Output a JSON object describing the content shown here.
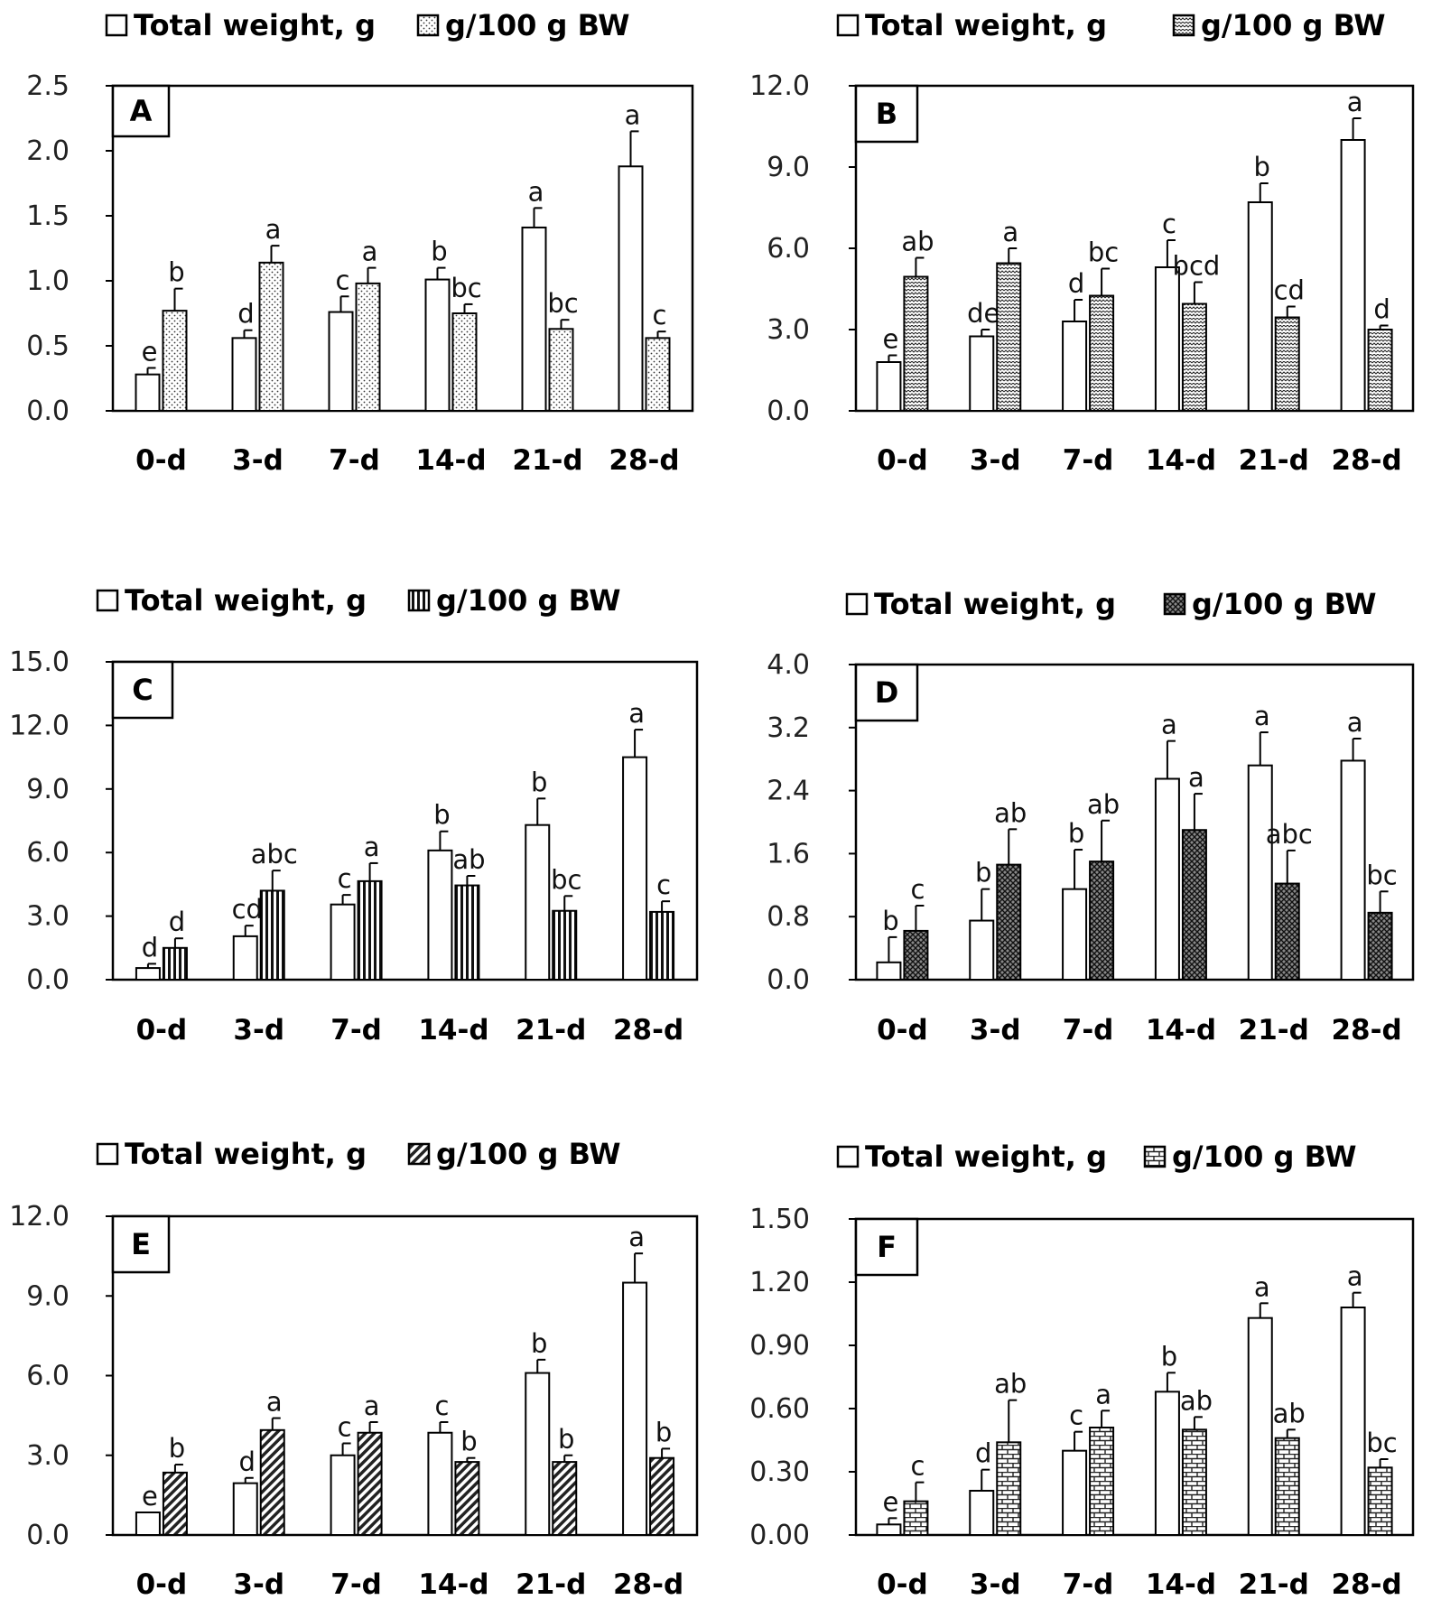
{
  "chart_data": [
    {
      "type": "bar",
      "panel_label": "A",
      "legend": [
        "Total weight, g",
        "g/100 g BW"
      ],
      "categories": [
        "0-d",
        "3-d",
        "7-d",
        "14-d",
        "21-d",
        "28-d"
      ],
      "ylim": [
        0,
        2.5
      ],
      "yticks": [
        "0.0",
        "0.5",
        "1.0",
        "1.5",
        "2.0",
        "2.5"
      ],
      "series": [
        {
          "name": "Total weight, g",
          "values": [
            0.28,
            0.56,
            0.76,
            1.01,
            1.41,
            1.88
          ],
          "errors": [
            0.05,
            0.06,
            0.12,
            0.09,
            0.15,
            0.27
          ],
          "letters": [
            "e",
            "d",
            "c",
            "b",
            "a",
            "a"
          ]
        },
        {
          "name": "g/100 g BW",
          "values": [
            0.77,
            1.14,
            0.98,
            0.75,
            0.63,
            0.56
          ],
          "errors": [
            0.17,
            0.13,
            0.12,
            0.07,
            0.07,
            0.05
          ],
          "letters": [
            "b",
            "a",
            "a",
            "bc",
            "bc",
            "c"
          ]
        }
      ]
    },
    {
      "type": "bar",
      "panel_label": "B",
      "legend": [
        "Total weight, g",
        "g/100 g BW"
      ],
      "categories": [
        "0-d",
        "3-d",
        "7-d",
        "14-d",
        "21-d",
        "28-d"
      ],
      "ylim": [
        0,
        12
      ],
      "yticks": [
        "0.0",
        "3.0",
        "6.0",
        "9.0",
        "12.0"
      ],
      "series": [
        {
          "name": "Total weight, g",
          "values": [
            1.8,
            2.75,
            3.3,
            5.3,
            7.7,
            10.0
          ],
          "errors": [
            0.25,
            0.25,
            0.8,
            1.0,
            0.7,
            0.8
          ],
          "letters": [
            "e",
            "de",
            "d",
            "c",
            "b",
            "a"
          ]
        },
        {
          "name": "g/100 g BW",
          "values": [
            4.95,
            5.45,
            4.25,
            3.95,
            3.45,
            3.0
          ],
          "errors": [
            0.7,
            0.55,
            1.0,
            0.8,
            0.4,
            0.15
          ],
          "letters": [
            "ab",
            "a",
            "bc",
            "bcd",
            "cd",
            "d"
          ]
        }
      ]
    },
    {
      "type": "bar",
      "panel_label": "C",
      "legend": [
        "Total weight, g",
        "g/100 g BW"
      ],
      "categories": [
        "0-d",
        "3-d",
        "7-d",
        "14-d",
        "21-d",
        "28-d"
      ],
      "ylim": [
        0,
        15
      ],
      "yticks": [
        "0.0",
        "3.0",
        "6.0",
        "9.0",
        "12.0",
        "15.0"
      ],
      "series": [
        {
          "name": "Total weight, g",
          "values": [
            0.55,
            2.05,
            3.55,
            6.1,
            7.3,
            10.5
          ],
          "errors": [
            0.2,
            0.5,
            0.45,
            0.9,
            1.25,
            1.3
          ],
          "letters": [
            "d",
            "cd",
            "c",
            "b",
            "b",
            "a"
          ]
        },
        {
          "name": "g/100 g BW",
          "values": [
            1.5,
            4.2,
            4.65,
            4.45,
            3.25,
            3.2
          ],
          "errors": [
            0.45,
            0.95,
            0.85,
            0.45,
            0.7,
            0.5
          ],
          "letters": [
            "d",
            "abc",
            "a",
            "ab",
            "bc",
            "c"
          ]
        }
      ]
    },
    {
      "type": "bar",
      "panel_label": "D",
      "legend": [
        "Total weight, g",
        "g/100 g BW"
      ],
      "categories": [
        "0-d",
        "3-d",
        "7-d",
        "14-d",
        "21-d",
        "28-d"
      ],
      "ylim": [
        0,
        4.0
      ],
      "yticks": [
        "0.0",
        "0.8",
        "1.6",
        "2.4",
        "3.2",
        "4.0"
      ],
      "series": [
        {
          "name": "Total weight, g",
          "values": [
            0.22,
            0.75,
            1.15,
            2.55,
            2.72,
            2.78
          ],
          "errors": [
            0.32,
            0.4,
            0.5,
            0.48,
            0.42,
            0.28
          ],
          "letters": [
            "b",
            "b",
            "b",
            "a",
            "a",
            "a"
          ]
        },
        {
          "name": "g/100 g BW",
          "values": [
            0.62,
            1.46,
            1.5,
            1.9,
            1.22,
            0.85
          ],
          "errors": [
            0.32,
            0.45,
            0.52,
            0.46,
            0.42,
            0.27
          ],
          "letters": [
            "c",
            "ab",
            "ab",
            "a",
            "abc",
            "bc"
          ]
        }
      ]
    },
    {
      "type": "bar",
      "panel_label": "E",
      "legend": [
        "Total weight, g",
        "g/100 g BW"
      ],
      "categories": [
        "0-d",
        "3-d",
        "7-d",
        "14-d",
        "21-d",
        "28-d"
      ],
      "ylim": [
        0,
        12
      ],
      "yticks": [
        "0.0",
        "3.0",
        "6.0",
        "9.0",
        "12.0"
      ],
      "series": [
        {
          "name": "Total weight, g",
          "values": [
            0.85,
            1.95,
            3.0,
            3.85,
            6.1,
            9.5
          ],
          "errors": [
            0.0,
            0.2,
            0.45,
            0.4,
            0.5,
            1.1
          ],
          "letters": [
            "e",
            "d",
            "c",
            "c",
            "b",
            "a"
          ]
        },
        {
          "name": "g/100 g BW",
          "values": [
            2.35,
            3.95,
            3.85,
            2.75,
            2.75,
            2.9
          ],
          "errors": [
            0.3,
            0.45,
            0.4,
            0.15,
            0.25,
            0.35
          ],
          "letters": [
            "b",
            "a",
            "a",
            "b",
            "b",
            "b"
          ]
        }
      ]
    },
    {
      "type": "bar",
      "panel_label": "F",
      "legend": [
        "Total weight, g",
        "g/100 g BW"
      ],
      "categories": [
        "0-d",
        "3-d",
        "7-d",
        "14-d",
        "21-d",
        "28-d"
      ],
      "ylim": [
        0,
        1.5
      ],
      "yticks": [
        "0.00",
        "0.30",
        "0.60",
        "0.90",
        "1.20",
        "1.50"
      ],
      "series": [
        {
          "name": "Total weight, g",
          "values": [
            0.05,
            0.21,
            0.4,
            0.68,
            1.03,
            1.08
          ],
          "errors": [
            0.03,
            0.1,
            0.09,
            0.09,
            0.07,
            0.07
          ],
          "letters": [
            "e",
            "d",
            "c",
            "b",
            "a",
            "a"
          ]
        },
        {
          "name": "g/100 g BW",
          "values": [
            0.16,
            0.44,
            0.51,
            0.5,
            0.46,
            0.32
          ],
          "errors": [
            0.09,
            0.2,
            0.08,
            0.06,
            0.04,
            0.04
          ],
          "letters": [
            "c",
            "ab",
            "a",
            "ab",
            "ab",
            "bc"
          ]
        }
      ]
    }
  ]
}
